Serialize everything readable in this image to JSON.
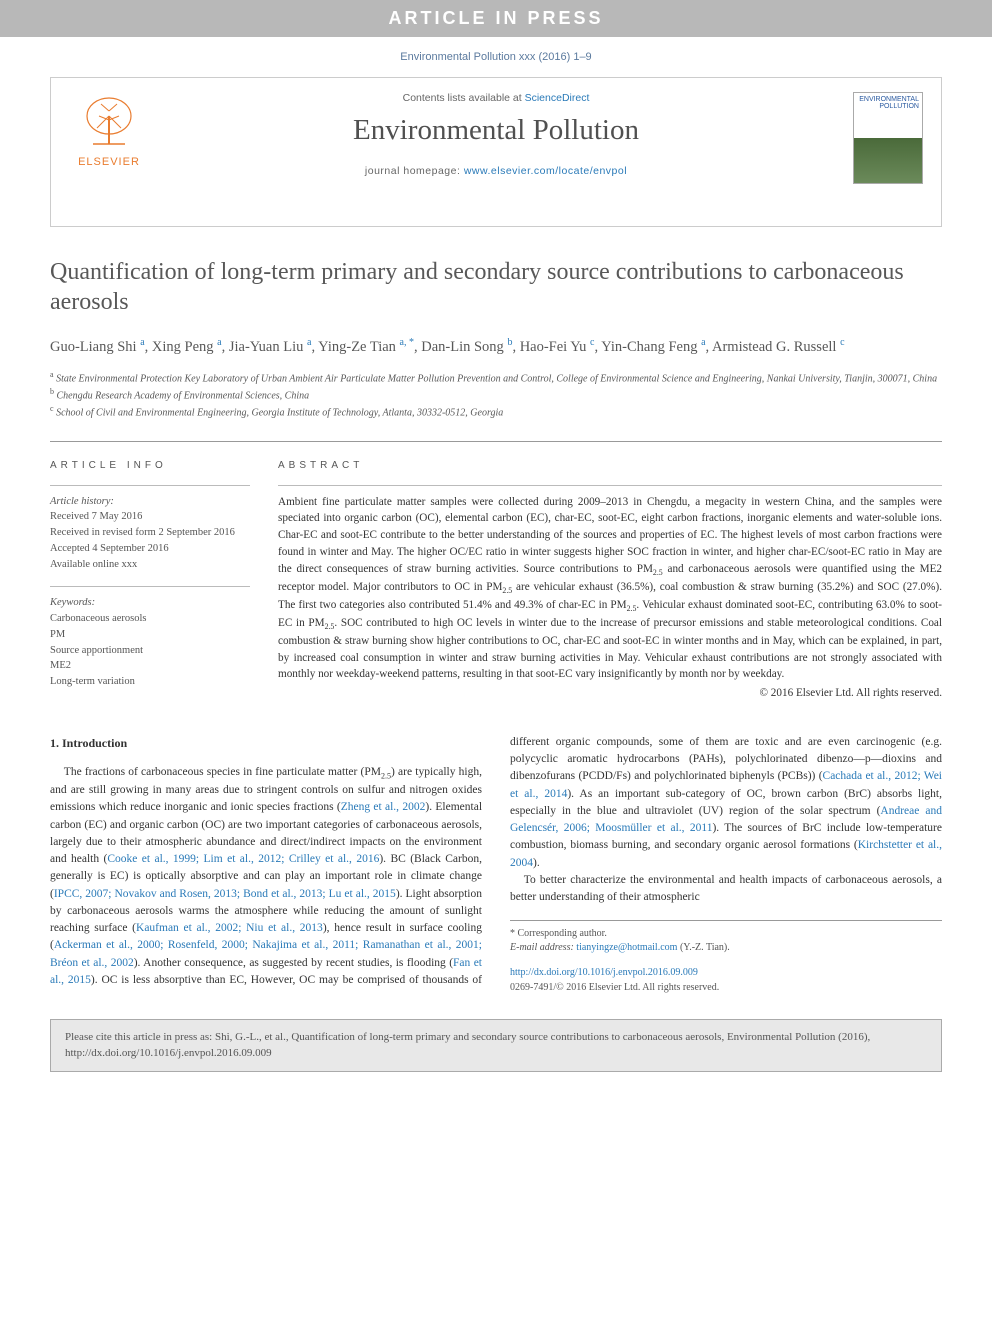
{
  "banner": "ARTICLE IN PRESS",
  "journal_ref": "Environmental Pollution xxx (2016) 1–9",
  "header": {
    "contents_prefix": "Contents lists available at ",
    "contents_link": "ScienceDirect",
    "journal_name": "Environmental Pollution",
    "homepage_prefix": "journal homepage: ",
    "homepage_link": "www.elsevier.com/locate/envpol",
    "elsevier_brand": "ELSEVIER",
    "cover_text": "ENVIRONMENTAL POLLUTION"
  },
  "title": "Quantification of long-term primary and secondary source contributions to carbonaceous aerosols",
  "authors_html": "Guo-Liang Shi <sup>a</sup>, Xing Peng <sup>a</sup>, Jia-Yuan Liu <sup>a</sup>, Ying-Ze Tian <sup>a, *</sup>, Dan-Lin Song <sup>b</sup>, Hao-Fei Yu <sup>c</sup>, Yin-Chang Feng <sup>a</sup>, Armistead G. Russell <sup>c</sup>",
  "affiliations": {
    "a": "State Environmental Protection Key Laboratory of Urban Ambient Air Particulate Matter Pollution Prevention and Control, College of Environmental Science and Engineering, Nankai University, Tianjin, 300071, China",
    "b": "Chengdu Research Academy of Environmental Sciences, China",
    "c": "School of Civil and Environmental Engineering, Georgia Institute of Technology, Atlanta, 30332-0512, Georgia"
  },
  "article_info": {
    "heading": "ARTICLE INFO",
    "history_heading": "Article history:",
    "received": "Received 7 May 2016",
    "revised": "Received in revised form 2 September 2016",
    "accepted": "Accepted 4 September 2016",
    "online": "Available online xxx",
    "keywords_heading": "Keywords:",
    "keywords": [
      "Carbonaceous aerosols",
      "PM",
      "Source apportionment",
      "ME2",
      "Long-term variation"
    ]
  },
  "abstract": {
    "heading": "ABSTRACT",
    "text": "Ambient fine particulate matter samples were collected during 2009–2013 in Chengdu, a megacity in western China, and the samples were speciated into organic carbon (OC), elemental carbon (EC), char-EC, soot-EC, eight carbon fractions, inorganic elements and water-soluble ions. Char-EC and soot-EC contribute to the better understanding of the sources and properties of EC. The highest levels of most carbon fractions were found in winter and May. The higher OC/EC ratio in winter suggests higher SOC fraction in winter, and higher char-EC/soot-EC ratio in May are the direct consequences of straw burning activities. Source contributions to PM2.5 and carbonaceous aerosols were quantified using the ME2 receptor model. Major contributors to OC in PM2.5 are vehicular exhaust (36.5%), coal combustion & straw burning (35.2%) and SOC (27.0%). The first two categories also contributed 51.4% and 49.3% of char-EC in PM2.5. Vehicular exhaust dominated soot-EC, contributing 63.0% to soot-EC in PM2.5. SOC contributed to high OC levels in winter due to the increase of precursor emissions and stable meteorological conditions. Coal combustion & straw burning show higher contributions to OC, char-EC and soot-EC in winter months and in May, which can be explained, in part, by increased coal consumption in winter and straw burning activities in May. Vehicular exhaust contributions are not strongly associated with monthly nor weekday-weekend patterns, resulting in that soot-EC vary insignificantly by month nor by weekday.",
    "copyright": "© 2016 Elsevier Ltd. All rights reserved."
  },
  "intro": {
    "heading": "1. Introduction",
    "p1_pre": "The fractions of carbonaceous species in fine particulate matter (PM2.5) are typically high, and are still growing in many areas due to stringent controls on sulfur and nitrogen oxides emissions which reduce inorganic and ionic species fractions (",
    "c1": "Zheng et al., 2002",
    "p1_mid1": "). Elemental carbon (EC) and organic carbon (OC) are two important categories of carbonaceous aerosols, largely due to their atmospheric abundance and direct/indirect impacts on the environment and health (",
    "c2": "Cooke et al., 1999; Lim et al., 2012; Crilley et al., 2016",
    "p1_mid2": "). BC (Black Carbon, generally is EC) is optically absorptive and can play an important role in climate change (",
    "c3": "IPCC, 2007; Novakov and Rosen, 2013; Bond et al., 2013; Lu et al., 2015",
    "p1_mid3": "). Light absorption by carbonaceous aerosols warms the atmosphere while reducing the amount of sunlight reaching surface (",
    "c4": "Kaufman et al., 2002; Niu et al., 2013",
    "p1_mid4": "), hence result in surface cooling (",
    "c5": "Ackerman et al., 2000; Rosenfeld, 2000; Nakajima et al., 2011; Ramanathan et al., 2001; Bréon et al., 2002",
    "p1_mid5": "). Another consequence, as suggested by recent studies, is flooding (",
    "c6": "Fan et al., 2015",
    "p1_mid6": "). OC is less absorptive than EC, However, OC may be comprised of thousands of different organic compounds, some of them are toxic and are even carcinogenic (e.g. polycyclic aromatic hydrocarbons (PAHs), polychlorinated dibenzo—p—dioxins and dibenzofurans (PCDD/Fs) and polychlorinated biphenyls (PCBs)) (",
    "c7": "Cachada et al., 2012; Wei et al., 2014",
    "p1_mid7": "). As an important sub-category of OC, brown carbon (BrC) absorbs light, especially in the blue and ultraviolet (UV) region of the solar spectrum (",
    "c8": "Andreae and Gelencsér, 2006; Moosmüller et al., 2011",
    "p1_mid8": "). The sources of BrC include low-temperature combustion, biomass burning, and secondary organic aerosol formations (",
    "c9": "Kirchstetter et al., 2004",
    "p1_end": ").",
    "p2": "To better characterize the environmental and health impacts of carbonaceous aerosols, a better understanding of their atmospheric"
  },
  "footnote": {
    "corresponding": "* Corresponding author.",
    "email_label": "E-mail address: ",
    "email": "tianyingze@hotmail.com",
    "email_suffix": " (Y.-Z. Tian)."
  },
  "doi": {
    "link": "http://dx.doi.org/10.1016/j.envpol.2016.09.009",
    "issn_line": "0269-7491/© 2016 Elsevier Ltd. All rights reserved."
  },
  "citation_box": "Please cite this article in press as: Shi, G.-L., et al., Quantification of long-term primary and secondary source contributions to carbonaceous aerosols, Environmental Pollution (2016), http://dx.doi.org/10.1016/j.envpol.2016.09.009"
}
